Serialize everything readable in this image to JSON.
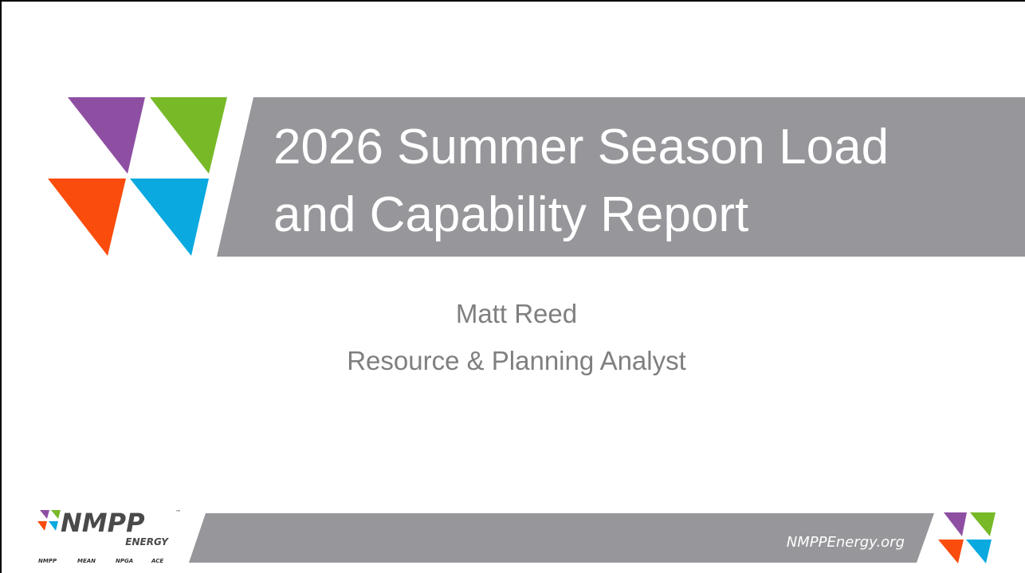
{
  "slide": {
    "title": {
      "lines": [
        "2026 Summer Season Load",
        "and Capability Report"
      ]
    },
    "presenter": {
      "name": "Matt Reed",
      "role": "Resource & Planning Analyst"
    },
    "footer": {
      "url": "NMPPEnergy.org"
    },
    "logo": {
      "name": "NMPP",
      "trademark": "™",
      "sub": "ENERGY",
      "members": [
        "NMPP",
        "MEAN",
        "NPGA",
        "ACE"
      ]
    }
  }
}
